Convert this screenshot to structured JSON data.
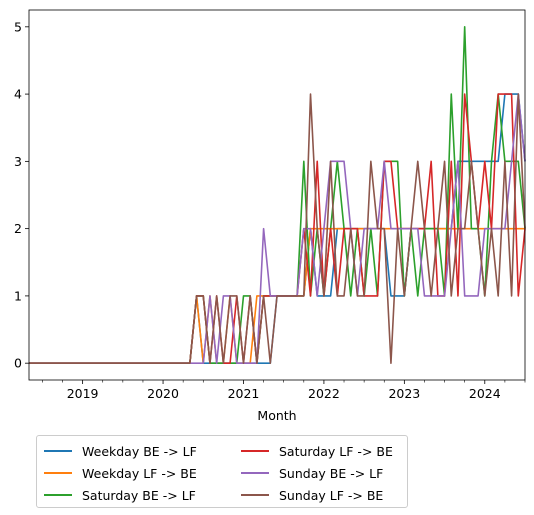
{
  "chart_data": {
    "type": "line",
    "xlabel": "Month",
    "ylabel": "",
    "ylim": [
      -0.25,
      5.25
    ],
    "yticks": [
      0,
      1,
      2,
      3,
      4,
      5
    ],
    "xlim": [
      "2018-05",
      "2024-07"
    ],
    "xticks": [
      "2019",
      "2020",
      "2021",
      "2022",
      "2023",
      "2024"
    ],
    "grid": false,
    "legend_placement": "below plot, two columns",
    "months": [
      "2018-05",
      "2018-06",
      "2018-07",
      "2018-08",
      "2018-09",
      "2018-10",
      "2018-11",
      "2018-12",
      "2019-01",
      "2019-02",
      "2019-03",
      "2019-04",
      "2019-05",
      "2019-06",
      "2019-07",
      "2019-08",
      "2019-09",
      "2019-10",
      "2019-11",
      "2019-12",
      "2020-01",
      "2020-02",
      "2020-03",
      "2020-04",
      "2020-05",
      "2020-06",
      "2020-07",
      "2020-08",
      "2020-09",
      "2020-10",
      "2020-11",
      "2020-12",
      "2021-01",
      "2021-02",
      "2021-03",
      "2021-04",
      "2021-05",
      "2021-06",
      "2021-07",
      "2021-08",
      "2021-09",
      "2021-10",
      "2021-11",
      "2021-12",
      "2022-01",
      "2022-02",
      "2022-03",
      "2022-04",
      "2022-05",
      "2022-06",
      "2022-07",
      "2022-08",
      "2022-09",
      "2022-10",
      "2022-11",
      "2022-12",
      "2023-01",
      "2023-02",
      "2023-03",
      "2023-04",
      "2023-05",
      "2023-06",
      "2023-07",
      "2023-08",
      "2023-09",
      "2023-10",
      "2023-11",
      "2023-12",
      "2024-01",
      "2024-02",
      "2024-03",
      "2024-04",
      "2024-05",
      "2024-06",
      "2024-07"
    ],
    "series": [
      {
        "name": "Weekday BE -> LF",
        "color": "#1f77b4",
        "values": [
          0,
          0,
          0,
          0,
          0,
          0,
          0,
          0,
          0,
          0,
          0,
          0,
          0,
          0,
          0,
          0,
          0,
          0,
          0,
          0,
          0,
          0,
          0,
          0,
          0,
          1,
          0,
          0,
          0,
          0,
          0,
          0,
          0,
          0,
          0,
          0,
          0,
          1,
          1,
          1,
          1,
          1,
          2,
          1,
          1,
          1,
          2,
          2,
          2,
          2,
          2,
          2,
          2,
          2,
          1,
          1,
          1,
          2,
          2,
          2,
          2,
          2,
          2,
          2,
          3,
          3,
          3,
          3,
          3,
          3,
          3,
          4,
          4,
          4,
          3
        ]
      },
      {
        "name": "Weekday LF -> BE",
        "color": "#ff7f0e",
        "values": [
          0,
          0,
          0,
          0,
          0,
          0,
          0,
          0,
          0,
          0,
          0,
          0,
          0,
          0,
          0,
          0,
          0,
          0,
          0,
          0,
          0,
          0,
          0,
          0,
          0,
          1,
          0,
          1,
          0,
          0,
          1,
          0,
          0,
          0,
          1,
          1,
          1,
          1,
          1,
          1,
          1,
          1,
          2,
          2,
          2,
          2,
          2,
          2,
          2,
          2,
          2,
          2,
          2,
          2,
          2,
          2,
          2,
          2,
          2,
          2,
          2,
          2,
          2,
          2,
          2,
          2,
          2,
          2,
          2,
          2,
          2,
          2,
          2,
          2,
          2
        ]
      },
      {
        "name": "Saturday BE -> LF",
        "color": "#2ca02c",
        "values": [
          0,
          0,
          0,
          0,
          0,
          0,
          0,
          0,
          0,
          0,
          0,
          0,
          0,
          0,
          0,
          0,
          0,
          0,
          0,
          0,
          0,
          0,
          0,
          0,
          0,
          1,
          1,
          0,
          0,
          0,
          0,
          0,
          1,
          1,
          0,
          1,
          1,
          1,
          1,
          1,
          1,
          3,
          1,
          2,
          1,
          2,
          3,
          2,
          1,
          2,
          1,
          2,
          1,
          3,
          3,
          3,
          1,
          2,
          1,
          2,
          2,
          2,
          1,
          4,
          2,
          5,
          2,
          2,
          1,
          3,
          4,
          3,
          3,
          3,
          2
        ]
      },
      {
        "name": "Saturday LF -> BE",
        "color": "#d62728",
        "values": [
          0,
          0,
          0,
          0,
          0,
          0,
          0,
          0,
          0,
          0,
          0,
          0,
          0,
          0,
          0,
          0,
          0,
          0,
          0,
          0,
          0,
          0,
          0,
          0,
          0,
          1,
          1,
          0,
          1,
          0,
          0,
          1,
          0,
          1,
          0,
          1,
          1,
          1,
          1,
          1,
          1,
          2,
          1,
          3,
          1,
          2,
          1,
          2,
          2,
          2,
          1,
          1,
          1,
          3,
          3,
          2,
          2,
          2,
          2,
          2,
          3,
          1,
          1,
          3,
          1,
          4,
          3,
          2,
          3,
          2,
          4,
          4,
          4,
          1,
          2
        ]
      },
      {
        "name": "Sunday BE -> LF",
        "color": "#9467bd",
        "values": [
          0,
          0,
          0,
          0,
          0,
          0,
          0,
          0,
          0,
          0,
          0,
          0,
          0,
          0,
          0,
          0,
          0,
          0,
          0,
          0,
          0,
          0,
          0,
          0,
          0,
          0,
          0,
          1,
          0,
          1,
          1,
          0,
          0,
          0,
          0,
          2,
          1,
          1,
          1,
          1,
          1,
          2,
          2,
          1,
          2,
          3,
          3,
          3,
          2,
          1,
          2,
          2,
          2,
          3,
          2,
          2,
          2,
          2,
          2,
          1,
          1,
          1,
          1,
          2,
          3,
          1,
          1,
          1,
          2,
          2,
          2,
          2,
          3,
          4,
          3
        ]
      },
      {
        "name": "Sunday LF -> BE",
        "color": "#8c564b",
        "values": [
          0,
          0,
          0,
          0,
          0,
          0,
          0,
          0,
          0,
          0,
          0,
          0,
          0,
          0,
          0,
          0,
          0,
          0,
          0,
          0,
          0,
          0,
          0,
          0,
          0,
          1,
          1,
          0,
          1,
          0,
          1,
          1,
          0,
          1,
          0,
          1,
          0,
          1,
          1,
          1,
          1,
          1,
          4,
          2,
          1,
          3,
          1,
          1,
          2,
          1,
          1,
          3,
          2,
          2,
          0,
          2,
          1,
          2,
          3,
          2,
          1,
          2,
          3,
          1,
          2,
          2,
          3,
          2,
          1,
          2,
          1,
          3,
          1,
          4,
          2
        ]
      }
    ]
  }
}
